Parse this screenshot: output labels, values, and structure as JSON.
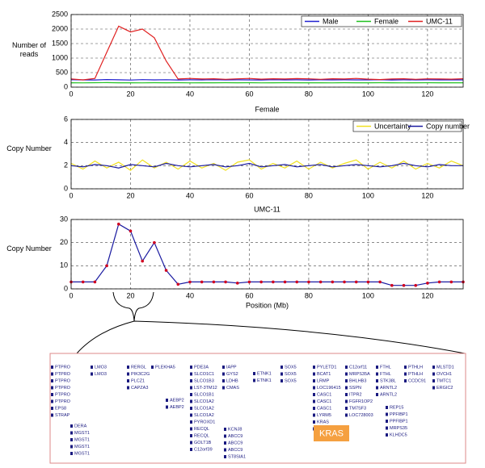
{
  "chart_data": [
    {
      "type": "line",
      "ylabel": "Number of reads",
      "legend": "upper right",
      "grid": true,
      "xlim": [
        0,
        132
      ],
      "xticks": [
        0,
        20,
        40,
        60,
        80,
        100,
        120
      ],
      "ylim": [
        0,
        2500
      ],
      "yticks": [
        0,
        500,
        1000,
        1500,
        2000,
        2500
      ],
      "x": [
        0,
        4,
        8,
        12,
        16,
        20,
        24,
        28,
        32,
        36,
        40,
        44,
        48,
        52,
        56,
        60,
        64,
        68,
        72,
        76,
        80,
        84,
        88,
        92,
        96,
        100,
        104,
        108,
        112,
        116,
        120,
        124,
        128,
        132
      ],
      "series": [
        {
          "name": "Male",
          "color": "#2020d0",
          "values": [
            255,
            250,
            248,
            260,
            252,
            245,
            258,
            250,
            255,
            248,
            252,
            250,
            256,
            249,
            253,
            251,
            247,
            255,
            250,
            252,
            248,
            254,
            250,
            253,
            249,
            251,
            255,
            248,
            252,
            250,
            254,
            249,
            251,
            250
          ]
        },
        {
          "name": "Female",
          "color": "#20c020",
          "values": [
            150,
            148,
            152,
            155,
            149,
            151,
            147,
            153,
            150,
            152,
            148,
            151,
            149,
            154,
            150,
            152,
            147,
            150,
            153,
            149,
            151,
            150,
            148,
            152,
            150,
            149,
            153,
            151,
            148,
            150,
            152,
            149,
            151,
            150
          ]
        },
        {
          "name": "UMC-11",
          "color": "#e02020",
          "values": [
            280,
            250,
            300,
            1200,
            2100,
            1900,
            2000,
            1700,
            900,
            280,
            300,
            280,
            290,
            270,
            285,
            300,
            275,
            290,
            280,
            295,
            285,
            270,
            290,
            280,
            300,
            275,
            260,
            280,
            290,
            270,
            285,
            280,
            275,
            290
          ]
        }
      ]
    },
    {
      "type": "line",
      "title": "Female",
      "ylabel": "Copy Number",
      "legend": "upper right",
      "grid": true,
      "xlim": [
        0,
        132
      ],
      "xticks": [
        0,
        20,
        40,
        60,
        80,
        100,
        120
      ],
      "ylim": [
        0,
        6
      ],
      "yticks": [
        0,
        2,
        4,
        6
      ],
      "x": [
        0,
        4,
        8,
        12,
        16,
        20,
        24,
        28,
        32,
        36,
        40,
        44,
        48,
        52,
        56,
        60,
        64,
        68,
        72,
        76,
        80,
        84,
        88,
        92,
        96,
        100,
        104,
        108,
        112,
        116,
        120,
        124,
        128,
        132
      ],
      "series": [
        {
          "name": "Uncertainty",
          "color": "#f0e020",
          "values": [
            2.2,
            1.7,
            2.4,
            1.8,
            2.3,
            1.6,
            2.5,
            1.8,
            2.3,
            1.7,
            2.4,
            1.8,
            2.2,
            1.6,
            2.3,
            2.5,
            1.7,
            2.2,
            1.8,
            2.4,
            1.7,
            2.3,
            1.8,
            2.2,
            2.5,
            1.7,
            2.3,
            1.8,
            2.4,
            1.7,
            2.2,
            1.8,
            2.4,
            2.0
          ]
        },
        {
          "name": "Copy number",
          "color": "#1a1aa0",
          "values": [
            2.0,
            1.9,
            2.1,
            2.0,
            1.8,
            2.1,
            2.0,
            1.9,
            2.2,
            2.0,
            1.9,
            2.0,
            2.1,
            1.9,
            2.0,
            2.2,
            1.9,
            2.0,
            2.1,
            1.9,
            2.0,
            2.1,
            1.9,
            2.0,
            2.1,
            2.0,
            1.9,
            2.0,
            2.2,
            2.0,
            1.9,
            2.1,
            2.0,
            2.0
          ]
        }
      ]
    },
    {
      "type": "line",
      "title": "UMC-11",
      "ylabel": "Copy Number",
      "xlabel": "Position (Mb)",
      "grid": true,
      "xlim": [
        0,
        132
      ],
      "xticks": [
        0,
        20,
        40,
        60,
        80,
        100,
        120
      ],
      "ylim": [
        0,
        30
      ],
      "yticks": [
        0,
        10,
        20,
        30
      ],
      "x": [
        0,
        4,
        8,
        12,
        16,
        20,
        24,
        28,
        32,
        36,
        40,
        44,
        48,
        52,
        56,
        60,
        64,
        68,
        72,
        76,
        80,
        84,
        88,
        92,
        96,
        100,
        104,
        108,
        112,
        116,
        120,
        124,
        128,
        132
      ],
      "series": [
        {
          "color": "#1a1aa0",
          "marker_color": "#d00020",
          "values": [
            3,
            3,
            3,
            10,
            28,
            25,
            12,
            20,
            8,
            2,
            3,
            3,
            3,
            3,
            2.5,
            3,
            3,
            3,
            3,
            3,
            3,
            3,
            3,
            3,
            3,
            3,
            3,
            1.5,
            1.5,
            1.5,
            2.5,
            3,
            3,
            3
          ]
        }
      ]
    }
  ],
  "gene_panel": {
    "highlight": "KRAS",
    "columns": [
      [
        "PTPRO",
        "PTPRO",
        "PTPRO",
        "PTPRO",
        "PTPRO",
        "PTPRO",
        "EPS8",
        "STRAP"
      ],
      [
        "DERA",
        "MGST1",
        "MGST1",
        "MGST1",
        "MGST1"
      ],
      [
        "LMO3",
        "LMO3"
      ],
      [
        "RERGL",
        "PIK3C2G",
        "PLCZ1",
        "CAPZA3"
      ],
      [
        "AEBP2",
        "AEBP2"
      ],
      [
        "PLEKHA5"
      ],
      [
        "PDE3A",
        "SLCO1C1",
        "SLCO1B3",
        "LST-3TM12",
        "SLCO1B1",
        "SLCO1A2",
        "SLCO1A2",
        "SLCO1A2",
        "PYROXD1",
        "RECQL",
        "RECQL",
        "GOLT1B",
        "C12orf39"
      ],
      [
        "IAPP",
        "GYS2",
        "LDHB",
        "CMAS"
      ],
      [
        "KCNJ8",
        "ABCC9",
        "ABCC9",
        "ABCC9",
        "ST8SIA1"
      ],
      [
        "ETNK1",
        "ETNK1"
      ],
      [
        "SOX5",
        "SOX5",
        "SOX5"
      ],
      [
        "PYLETD1",
        "BCAT1",
        "LRMP",
        "LOC196415",
        "CASC1",
        "CASC1",
        "CASC1",
        "LYRM5",
        "KRAS",
        "KRAS"
      ],
      [
        "C12orf11",
        "MRPS35A",
        "BHLHB3",
        "SSPN",
        "ITPR2",
        "FGFR1OP2",
        "TM7SF3",
        "LOC728003"
      ],
      [
        "REP15",
        "PPFIBP1",
        "PPFIBP1",
        "MRPS35",
        "KLHDC5"
      ],
      [
        "FTHL",
        "FTHL",
        "STK38L",
        "ARNTL2",
        "ARNTL2"
      ],
      [
        "PTHLH",
        "PTHLH",
        "CCDC91"
      ],
      [
        "MLSTD1",
        "OVCH1",
        "TMTC1",
        "ERGIC2"
      ]
    ]
  }
}
